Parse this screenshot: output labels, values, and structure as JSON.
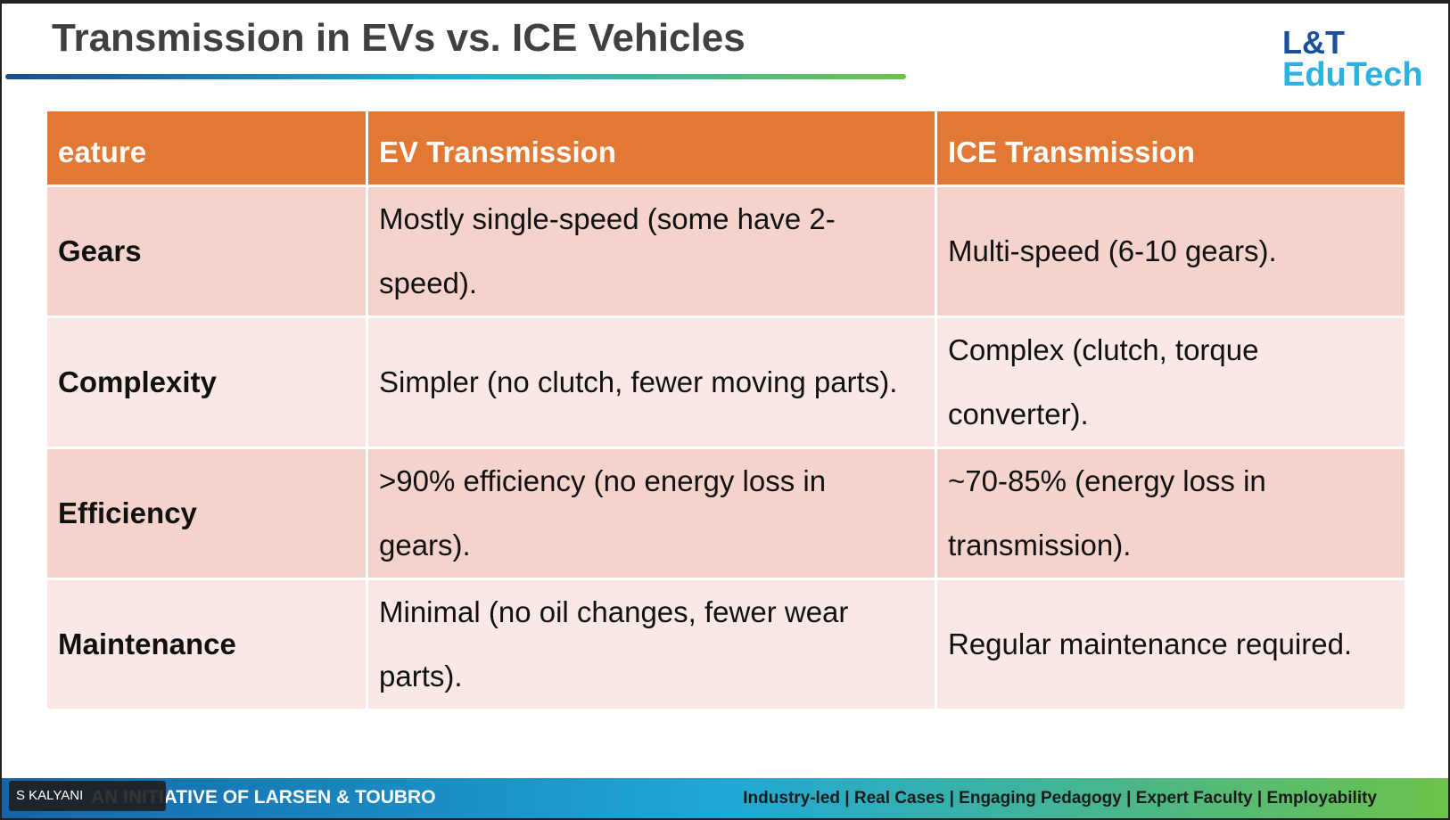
{
  "header": {
    "title": "Transmission in EVs vs. ICE Vehicles",
    "logo": [
      "L&T",
      "EduTech"
    ]
  },
  "table": {
    "columns": [
      "eature",
      "EV Transmission",
      "ICE Transmission"
    ],
    "rows": [
      [
        "Gears",
        "Mostly single-speed (some have 2-speed).",
        "Multi-speed (6-10 gears)."
      ],
      [
        "Complexity",
        "Simpler (no clutch, fewer moving parts).",
        "Complex (clutch, torque converter)."
      ],
      [
        "Efficiency",
        ">90% efficiency (no energy loss in gears).",
        "~70-85% (energy loss in transmission)."
      ],
      [
        "Maintenance",
        "Minimal (no oil changes, fewer wear parts).",
        "Regular maintenance required."
      ]
    ]
  },
  "footer": {
    "left": "AN INITIATIVE OF LARSEN & TOUBRO",
    "right": "Industry-led | Real Cases | Engaging Pedagogy | Expert Faculty | Employability"
  },
  "participant": {
    "name": "S KALYANI"
  }
}
